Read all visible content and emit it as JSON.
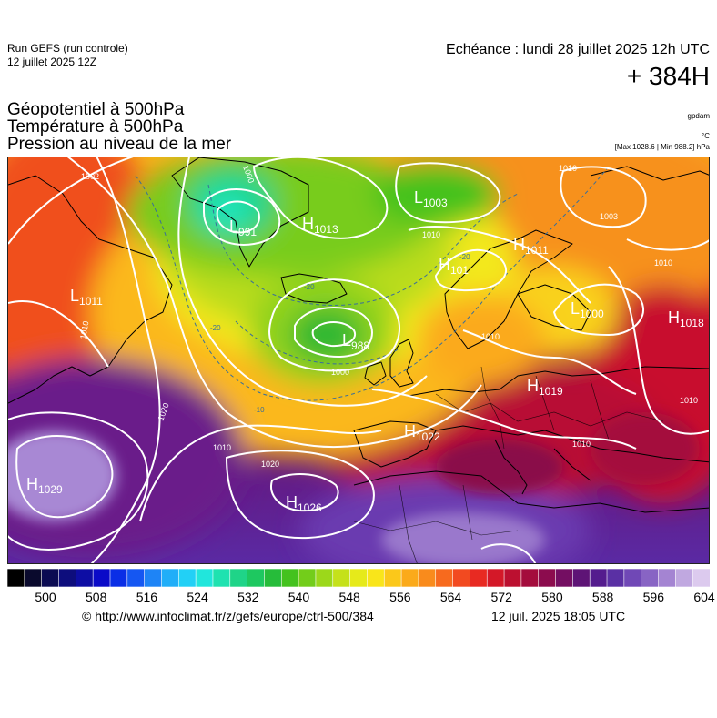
{
  "header": {
    "run_name": "Run GEFS (run controle)",
    "run_date": "12 juillet 2025 12Z",
    "echeance": "Echéance : lundi 28 juillet 2025 12h UTC",
    "horizon": "+ 384H"
  },
  "parameters": [
    "Géopotentiel à 500hPa",
    "Température à 500hPa",
    "Pression au niveau de la mer"
  ],
  "units": {
    "geopotential": "gpdam",
    "temperature": "°C",
    "extremes": "[Max 1028.6 | Min 988.2] hPa"
  },
  "map": {
    "pressure_centers": [
      {
        "type": "H",
        "value": "1029"
      },
      {
        "type": "H",
        "value": "1026"
      },
      {
        "type": "H",
        "value": "1022"
      },
      {
        "type": "H",
        "value": "1019"
      },
      {
        "type": "H",
        "value": "1018"
      },
      {
        "type": "H",
        "value": "1013"
      },
      {
        "type": "H",
        "value": "1011"
      },
      {
        "type": "H",
        "value": "101"
      },
      {
        "type": "L",
        "value": "1011"
      },
      {
        "type": "L",
        "value": "991"
      },
      {
        "type": "L",
        "value": "1003"
      },
      {
        "type": "L",
        "value": "1000"
      },
      {
        "type": "L",
        "value": "988"
      }
    ],
    "isobar_labels": [
      "1002",
      "1010",
      "1020",
      "1000",
      "1010",
      "1020",
      "1010",
      "1003",
      "1010",
      "1010",
      "1000",
      "1010",
      "1010",
      "1010"
    ],
    "temperature_labels": [
      "-20",
      "-20",
      "-20",
      "-10"
    ],
    "colors": {
      "isobar": "#ffffff",
      "low_geopotential": "#1fae2a",
      "high_geopotential": "#5a1ea6",
      "mid_geopotential": "#f6e61a"
    }
  },
  "legend": {
    "ticks": [
      "500",
      "508",
      "516",
      "524",
      "532",
      "540",
      "548",
      "556",
      "564",
      "572",
      "580",
      "588",
      "596",
      "604"
    ],
    "colors": [
      "#000000",
      "#0a0a2d",
      "#0b0b52",
      "#0d0d7d",
      "#0d0da4",
      "#0a0ac8",
      "#0a2ee6",
      "#1557f2",
      "#1e84f6",
      "#20aef8",
      "#22d0f6",
      "#21e6dc",
      "#1fe2b0",
      "#1fd488",
      "#1ec860",
      "#26bc3a",
      "#44c21e",
      "#73cd1a",
      "#9cd81a",
      "#c5e11a",
      "#e6ea1a",
      "#f9e51a",
      "#fbc81a",
      "#fbaa1a",
      "#f98b1c",
      "#f76a1e",
      "#f24a20",
      "#e82a22",
      "#d41828",
      "#bc1030",
      "#a40c3c",
      "#8c0c4e",
      "#740e62",
      "#5e1476",
      "#541c8e",
      "#5a30a4",
      "#7048b6",
      "#8864c4",
      "#a484d2",
      "#c0a8e0",
      "#dccaee"
    ]
  },
  "footer": {
    "credit": "© http://www.infoclimat.fr/z/gefs/europe/ctrl-500/384",
    "timestamp": "12 juil. 2025 18:05 UTC"
  }
}
